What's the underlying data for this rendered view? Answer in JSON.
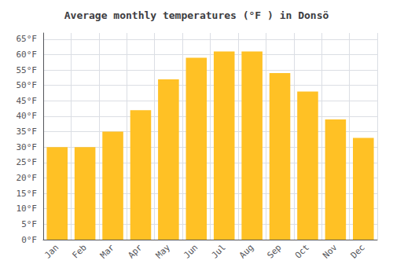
{
  "chart_data": {
    "type": "bar",
    "title": "Average monthly temperatures (°F ) in Donsö",
    "categories": [
      "Jan",
      "Feb",
      "Mar",
      "Apr",
      "May",
      "Jun",
      "Jul",
      "Aug",
      "Sep",
      "Oct",
      "Nov",
      "Dec"
    ],
    "values": [
      30,
      30,
      35,
      42,
      52,
      59,
      61,
      61,
      54,
      48,
      39,
      33
    ],
    "color": "#FFC125",
    "ylim": [
      0,
      67
    ],
    "yticks": [
      {
        "value": 0,
        "label": "0°F"
      },
      {
        "value": 5,
        "label": "5°F"
      },
      {
        "value": 10,
        "label": "10°F"
      },
      {
        "value": 15,
        "label": "15°F"
      },
      {
        "value": 20,
        "label": "20°F"
      },
      {
        "value": 25,
        "label": "25°F"
      },
      {
        "value": 30,
        "label": "30°F"
      },
      {
        "value": 35,
        "label": "35°F"
      },
      {
        "value": 40,
        "label": "40°F"
      },
      {
        "value": 45,
        "label": "45°F"
      },
      {
        "value": 50,
        "label": "50°F"
      },
      {
        "value": 55,
        "label": "55°F"
      },
      {
        "value": 60,
        "label": "60°F"
      },
      {
        "value": 65,
        "label": "65°F"
      }
    ],
    "grid": true
  }
}
